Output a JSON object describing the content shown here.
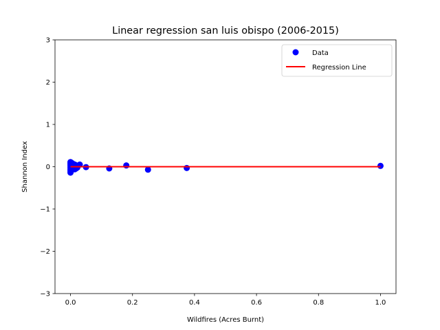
{
  "chart_data": {
    "type": "scatter",
    "title": "Linear regression san luis obispo (2006-2015)",
    "xlabel": "Wildfires (Acres Burnt)",
    "ylabel": "Shannon Index",
    "xlim": [
      -0.05,
      1.05
    ],
    "ylim": [
      -3,
      3
    ],
    "xticks": [
      0.0,
      0.2,
      0.4,
      0.6,
      0.8,
      1.0
    ],
    "xtick_labels": [
      "0.0",
      "0.2",
      "0.4",
      "0.6",
      "0.8",
      "1.0"
    ],
    "yticks": [
      -3,
      -2,
      -1,
      0,
      1,
      2,
      3
    ],
    "ytick_labels": [
      "−3",
      "−2",
      "−1",
      "0",
      "1",
      "2",
      "3"
    ],
    "grid": false,
    "legend_position": "upper-right",
    "series": [
      {
        "name": "Data",
        "kind": "scatter",
        "color": "#0000ff",
        "points": [
          [
            0.0,
            0.11
          ],
          [
            0.0,
            0.08
          ],
          [
            0.0,
            0.05
          ],
          [
            0.0,
            0.02
          ],
          [
            0.0,
            -0.02
          ],
          [
            0.0,
            -0.06
          ],
          [
            0.0,
            -0.1
          ],
          [
            0.0,
            -0.14
          ],
          [
            0.002,
            0.06
          ],
          [
            0.002,
            -0.04
          ],
          [
            0.004,
            0.09
          ],
          [
            0.004,
            -0.08
          ],
          [
            0.006,
            0.03
          ],
          [
            0.006,
            -0.05
          ],
          [
            0.008,
            0.07
          ],
          [
            0.008,
            -0.01
          ],
          [
            0.01,
            0.04
          ],
          [
            0.01,
            -0.03
          ],
          [
            0.012,
            0.0
          ],
          [
            0.014,
            0.05
          ],
          [
            0.014,
            -0.06
          ],
          [
            0.016,
            0.02
          ],
          [
            0.018,
            -0.04
          ],
          [
            0.02,
            0.01
          ],
          [
            0.022,
            -0.02
          ],
          [
            0.025,
            0.03
          ],
          [
            0.03,
            0.05
          ],
          [
            0.05,
            -0.01
          ],
          [
            0.125,
            -0.04
          ],
          [
            0.18,
            0.03
          ],
          [
            0.25,
            -0.07
          ],
          [
            0.375,
            -0.03
          ],
          [
            1.0,
            0.02
          ]
        ]
      },
      {
        "name": "Regression Line",
        "kind": "line",
        "color": "#ff0000",
        "x": [
          0.0,
          1.0
        ],
        "y": [
          0.0,
          0.0
        ]
      }
    ]
  }
}
